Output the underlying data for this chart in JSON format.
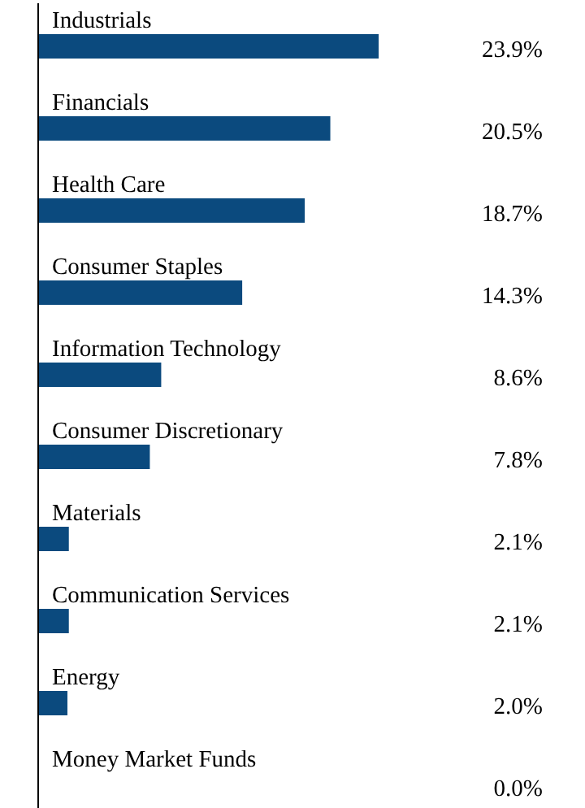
{
  "chart_data": {
    "type": "bar",
    "orientation": "horizontal",
    "categories": [
      "Industrials",
      "Financials",
      "Health Care",
      "Consumer Staples",
      "Information Technology",
      "Consumer Discretionary",
      "Materials",
      "Communication Services",
      "Energy",
      "Money Market Funds"
    ],
    "values": [
      23.9,
      20.5,
      18.7,
      14.3,
      8.6,
      7.8,
      2.1,
      2.1,
      2.0,
      0.0
    ],
    "value_labels": [
      "23.9%",
      "20.5%",
      "18.7%",
      "14.3%",
      "8.6%",
      "7.8%",
      "2.1%",
      "2.1%",
      "2.0%",
      "0.0%"
    ],
    "color": "#0b4a7e"
  }
}
